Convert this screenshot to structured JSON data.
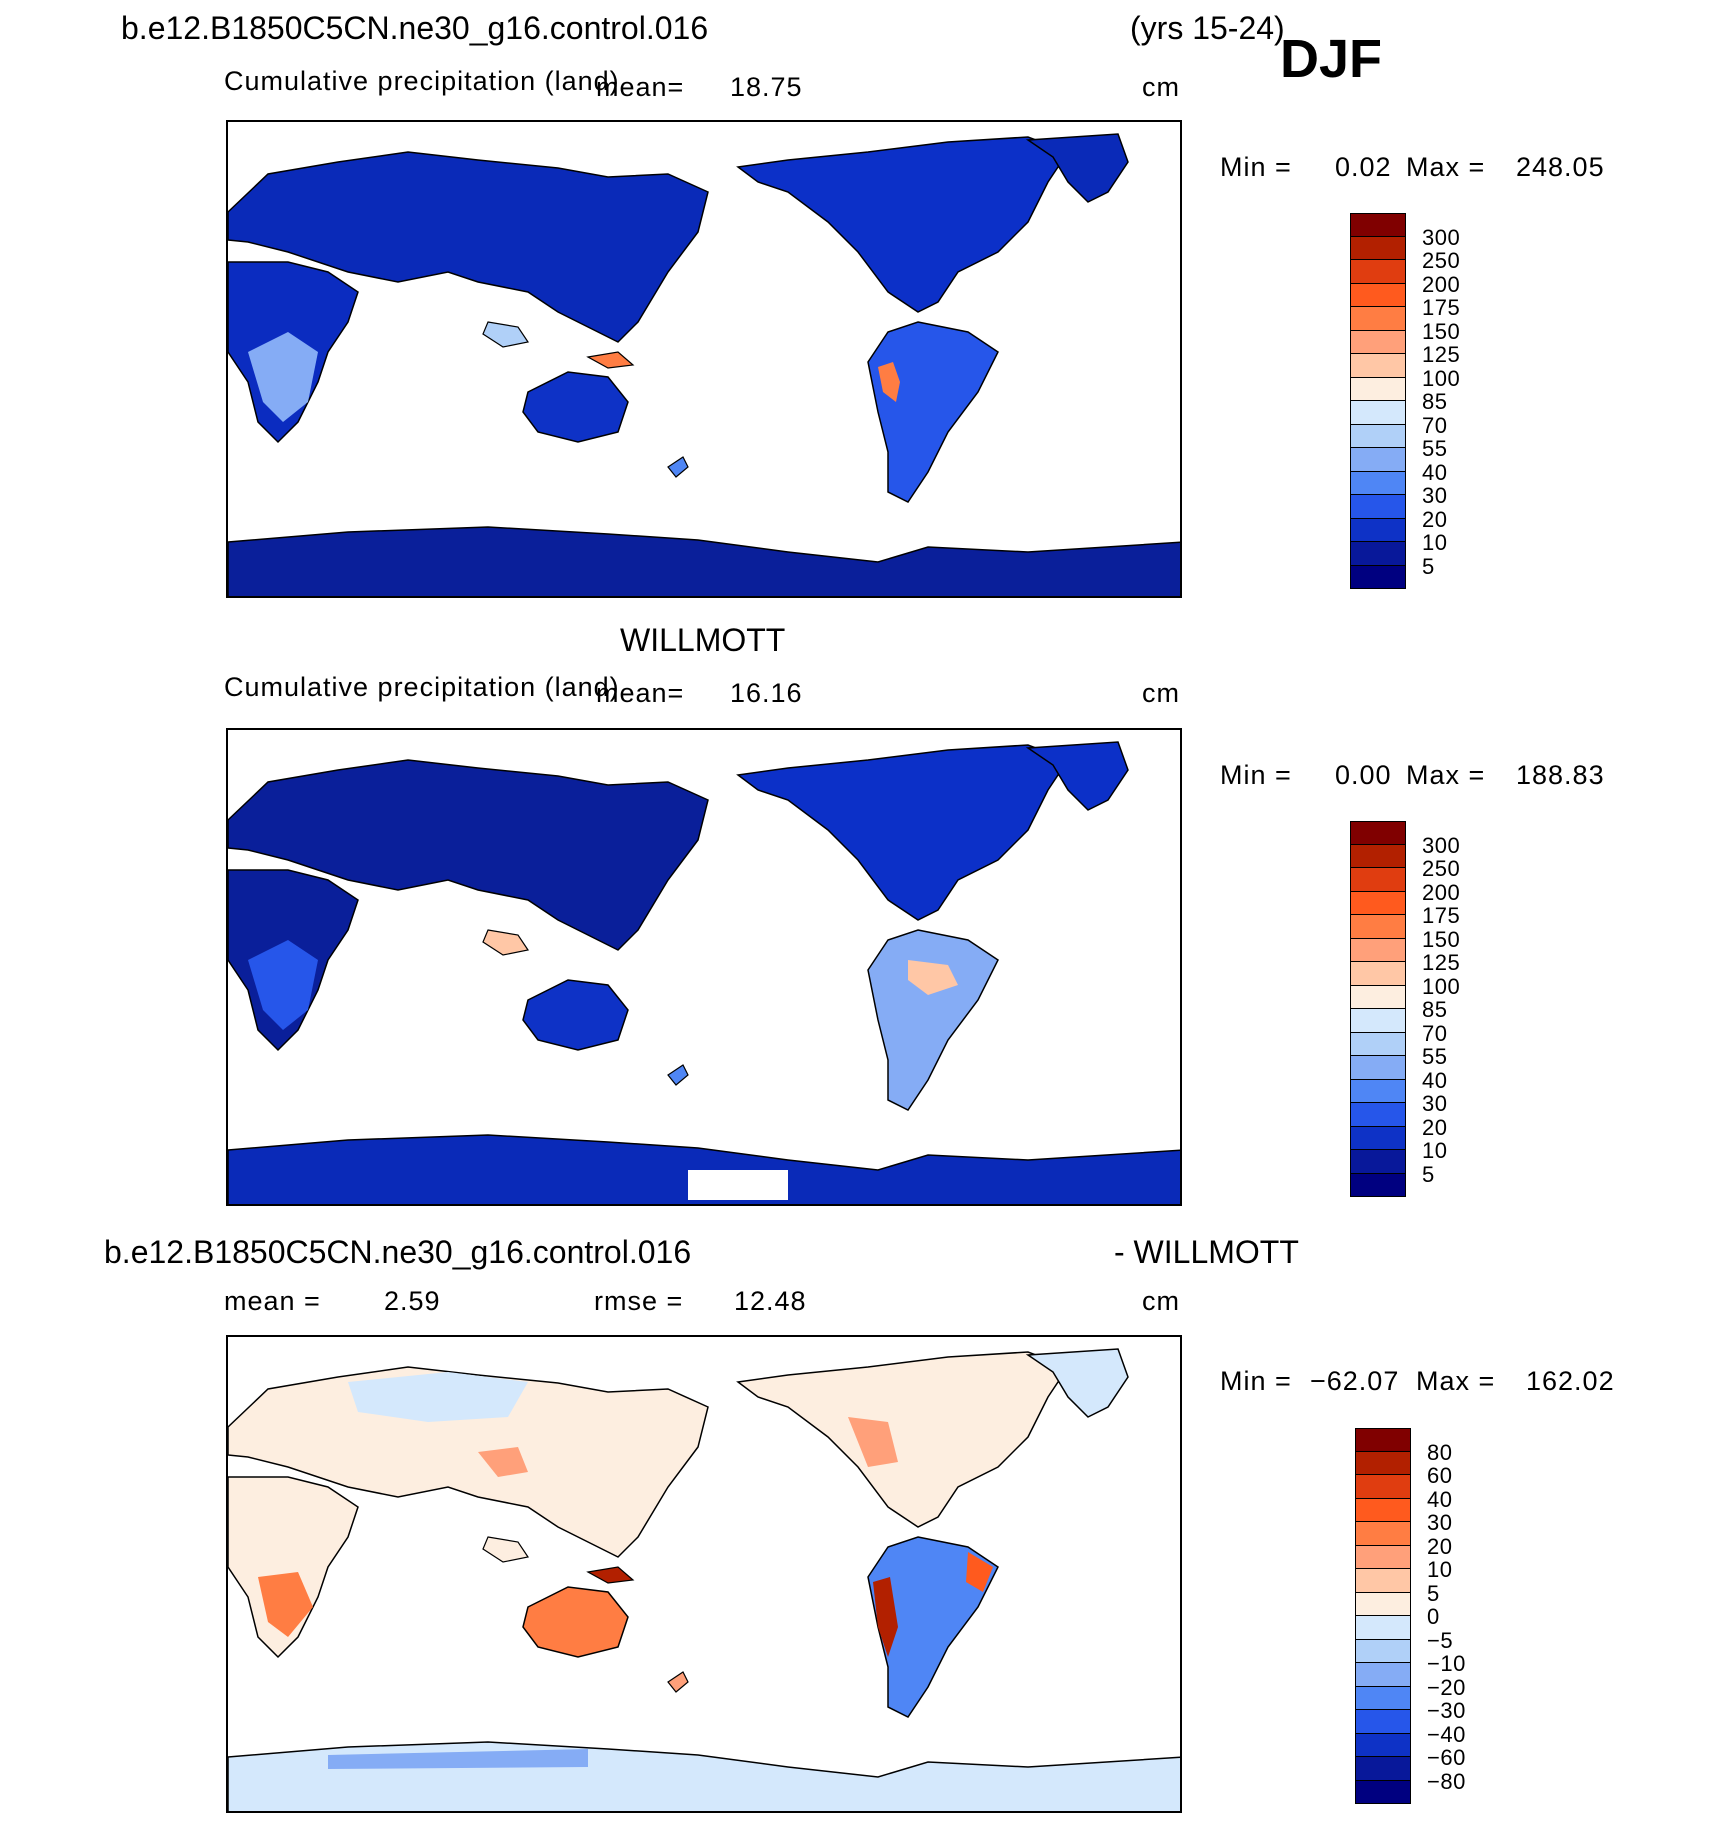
{
  "header": {
    "case_name": "b.e12.B1850C5CN.ne30_g16.control.016",
    "years": "(yrs 15-24)",
    "season": "DJF"
  },
  "panels": [
    {
      "id": "model",
      "variable": "Cumulative precipitation (land)",
      "mean_label": "mean=",
      "mean_value": "18.75",
      "units": "cm",
      "min_label": "Min =",
      "min_value": "0.02",
      "max_label": "Max =",
      "max_value": "248.05",
      "colorbar_labels": [
        "300",
        "250",
        "200",
        "175",
        "150",
        "125",
        "100",
        "85",
        "70",
        "55",
        "40",
        "30",
        "20",
        "10",
        "5"
      ]
    },
    {
      "id": "obs",
      "title": "WILLMOTT",
      "variable": "Cumulative precipitation (land)",
      "mean_label": "mean=",
      "mean_value": "16.16",
      "units": "cm",
      "min_label": "Min =",
      "min_value": "0.00",
      "max_label": "Max =",
      "max_value": "188.83",
      "colorbar_labels": [
        "300",
        "250",
        "200",
        "175",
        "150",
        "125",
        "100",
        "85",
        "70",
        "55",
        "40",
        "30",
        "20",
        "10",
        "5"
      ]
    },
    {
      "id": "diff",
      "title_left": "b.e12.B1850C5CN.ne30_g16.control.016",
      "title_right": "- WILLMOTT",
      "mean_label": "mean =",
      "mean_value": "2.59",
      "rmse_label": "rmse =",
      "rmse_value": "12.48",
      "units": "cm",
      "min_label": "Min =",
      "min_value": "−62.07",
      "max_label": "Max =",
      "max_value": "162.02",
      "colorbar_labels": [
        "80",
        "60",
        "40",
        "30",
        "20",
        "10",
        "5",
        "0",
        "−5",
        "−10",
        "−20",
        "−30",
        "−40",
        "−60",
        "−80"
      ]
    }
  ],
  "colors": {
    "precip_scale": [
      "#800000",
      "#b22000",
      "#e03d10",
      "#ff5a1e",
      "#ff7d43",
      "#ffa07a",
      "#ffc7a6",
      "#fdeee0",
      "#d4e8fc",
      "#b0d0f8",
      "#85acf5",
      "#4f86f5",
      "#2656ea",
      "#0e32c6",
      "#08189a",
      "#000080"
    ],
    "diff_scale": [
      "#800000",
      "#b22000",
      "#e03d10",
      "#ff5a1e",
      "#ff7d43",
      "#ffa07a",
      "#ffc7a6",
      "#fdeee0",
      "#d4e8fc",
      "#b0d0f8",
      "#85acf5",
      "#4f86f5",
      "#2656ea",
      "#0e32c6",
      "#08189a",
      "#000080"
    ],
    "ocean": "#ffffff",
    "coast": "#000000"
  }
}
